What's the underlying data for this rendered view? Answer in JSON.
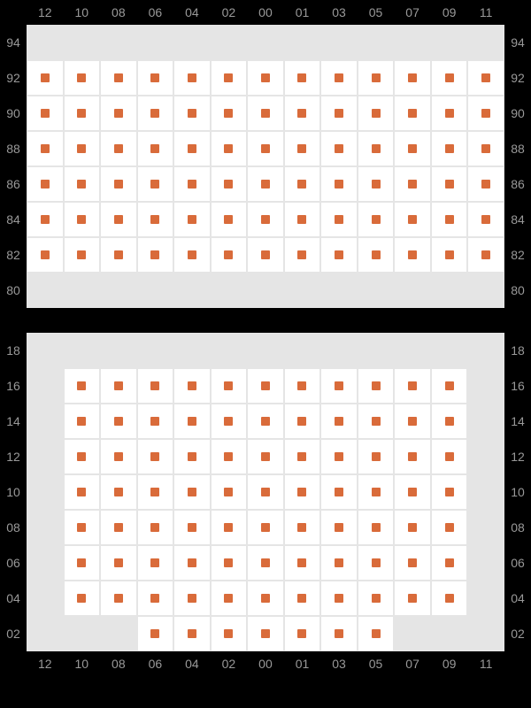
{
  "colors": {
    "background": "#000000",
    "empty_cell": "#e5e5e5",
    "seat_cell": "#ffffff",
    "marker": "#d96b3a",
    "grid_border": "#e5e5e5",
    "label": "#999999"
  },
  "layout": {
    "cell_size": 40,
    "marker_size": 10,
    "label_fontsize": 14
  },
  "columns": [
    "12",
    "10",
    "08",
    "06",
    "04",
    "02",
    "00",
    "01",
    "03",
    "05",
    "07",
    "09",
    "11"
  ],
  "sections": [
    {
      "id": "upper",
      "show_top_labels": true,
      "show_bottom_labels": false,
      "rows": [
        {
          "label": "94",
          "cells": [
            0,
            0,
            0,
            0,
            0,
            0,
            0,
            0,
            0,
            0,
            0,
            0,
            0
          ]
        },
        {
          "label": "92",
          "cells": [
            1,
            1,
            1,
            1,
            1,
            1,
            1,
            1,
            1,
            1,
            1,
            1,
            1
          ]
        },
        {
          "label": "90",
          "cells": [
            1,
            1,
            1,
            1,
            1,
            1,
            1,
            1,
            1,
            1,
            1,
            1,
            1
          ]
        },
        {
          "label": "88",
          "cells": [
            1,
            1,
            1,
            1,
            1,
            1,
            1,
            1,
            1,
            1,
            1,
            1,
            1
          ]
        },
        {
          "label": "86",
          "cells": [
            1,
            1,
            1,
            1,
            1,
            1,
            1,
            1,
            1,
            1,
            1,
            1,
            1
          ]
        },
        {
          "label": "84",
          "cells": [
            1,
            1,
            1,
            1,
            1,
            1,
            1,
            1,
            1,
            1,
            1,
            1,
            1
          ]
        },
        {
          "label": "82",
          "cells": [
            1,
            1,
            1,
            1,
            1,
            1,
            1,
            1,
            1,
            1,
            1,
            1,
            1
          ]
        },
        {
          "label": "80",
          "cells": [
            0,
            0,
            0,
            0,
            0,
            0,
            0,
            0,
            0,
            0,
            0,
            0,
            0
          ]
        }
      ]
    },
    {
      "id": "lower",
      "show_top_labels": false,
      "show_bottom_labels": true,
      "rows": [
        {
          "label": "18",
          "cells": [
            0,
            0,
            0,
            0,
            0,
            0,
            0,
            0,
            0,
            0,
            0,
            0,
            0
          ]
        },
        {
          "label": "16",
          "cells": [
            0,
            1,
            1,
            1,
            1,
            1,
            1,
            1,
            1,
            1,
            1,
            1,
            0
          ]
        },
        {
          "label": "14",
          "cells": [
            0,
            1,
            1,
            1,
            1,
            1,
            1,
            1,
            1,
            1,
            1,
            1,
            0
          ]
        },
        {
          "label": "12",
          "cells": [
            0,
            1,
            1,
            1,
            1,
            1,
            1,
            1,
            1,
            1,
            1,
            1,
            0
          ]
        },
        {
          "label": "10",
          "cells": [
            0,
            1,
            1,
            1,
            1,
            1,
            1,
            1,
            1,
            1,
            1,
            1,
            0
          ]
        },
        {
          "label": "08",
          "cells": [
            0,
            1,
            1,
            1,
            1,
            1,
            1,
            1,
            1,
            1,
            1,
            1,
            0
          ]
        },
        {
          "label": "06",
          "cells": [
            0,
            1,
            1,
            1,
            1,
            1,
            1,
            1,
            1,
            1,
            1,
            1,
            0
          ]
        },
        {
          "label": "04",
          "cells": [
            0,
            1,
            1,
            1,
            1,
            1,
            1,
            1,
            1,
            1,
            1,
            1,
            0
          ]
        },
        {
          "label": "02",
          "cells": [
            0,
            0,
            0,
            1,
            1,
            1,
            1,
            1,
            1,
            1,
            0,
            0,
            0
          ]
        }
      ]
    }
  ]
}
